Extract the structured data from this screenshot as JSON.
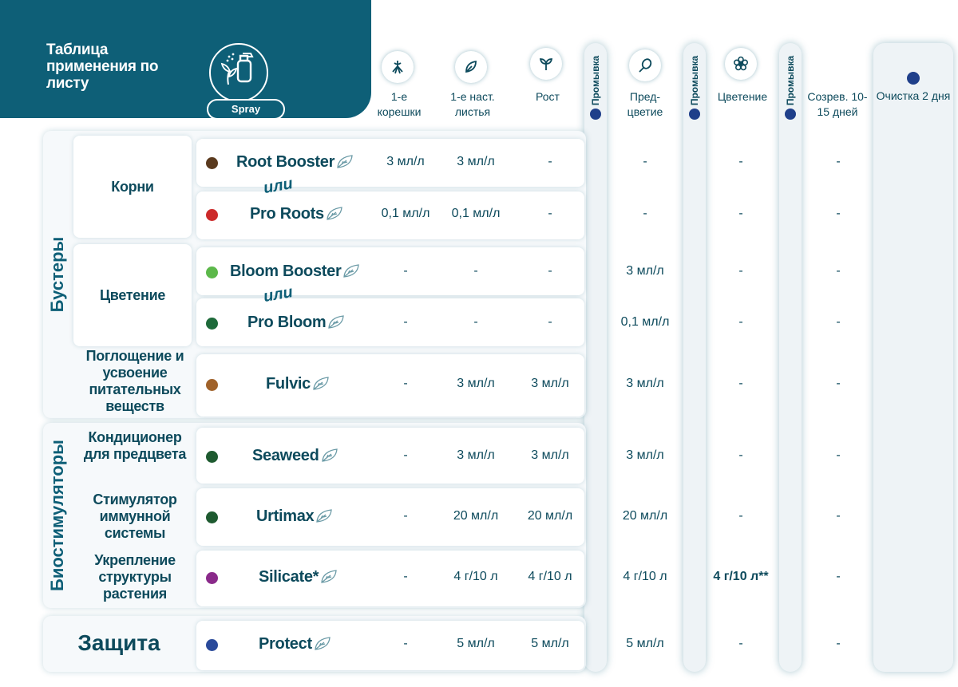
{
  "header": {
    "title": "Таблица применения по листу",
    "badge": "Spray",
    "icon": "spray-bottle-icon",
    "bg_color": "#0e5f77"
  },
  "columns": [
    {
      "label": "1-е корешки",
      "icon": "roots-icon"
    },
    {
      "label": "1-е наст. листья",
      "icon": "leaf-icon"
    },
    {
      "label": "Рост",
      "icon": "sprout-icon"
    },
    {
      "label": "Пред- цветие",
      "icon": "bud-icon"
    },
    {
      "label": "Цветение",
      "icon": "flower-icon"
    },
    {
      "label": "Созрев. 10-15 дней",
      "icon": ""
    }
  ],
  "wash_label": "Промывка",
  "clean": {
    "label": "Очистка 2 дня"
  },
  "groups": {
    "boosters": "Бустеры",
    "biostimulators": "Биостимуляторы",
    "protection": "Защита"
  },
  "subgroups": {
    "roots": "Корни",
    "bloom": "Цветение",
    "absorption": "Поглощение и усвоение питательных веществ",
    "conditioner": "Кондиционер для предцвета",
    "immune": "Стимулятор иммунной системы",
    "structure": "Укрепление структуры растения"
  },
  "or_label": "или",
  "rows": [
    {
      "product": "Root Booster",
      "dot_color": "#5a3a1e",
      "values": [
        "3 мл/л",
        "3 мл/л",
        "-",
        "-",
        "-",
        "-"
      ]
    },
    {
      "product": "Pro Roots",
      "dot_color": "#cc2a2a",
      "values": [
        "0,1 мл/л",
        "0,1 мл/л",
        "-",
        "-",
        "-",
        "-"
      ]
    },
    {
      "product": "Bloom Booster",
      "dot_color": "#5cb84a",
      "values": [
        "-",
        "-",
        "-",
        "3 мл/л",
        "-",
        "-"
      ]
    },
    {
      "product": "Pro Bloom",
      "dot_color": "#1e6a3a",
      "values": [
        "-",
        "-",
        "-",
        "0,1 мл/л",
        "-",
        "-"
      ]
    },
    {
      "product": "Fulvic",
      "dot_color": "#a0622a",
      "values": [
        "-",
        "3 мл/л",
        "3 мл/л",
        "3 мл/л",
        "-",
        "-"
      ]
    },
    {
      "product": "Seaweed",
      "dot_color": "#1e5a30",
      "values": [
        "-",
        "3 мл/л",
        "3 мл/л",
        "3 мл/л",
        "-",
        "-"
      ]
    },
    {
      "product": "Urtimax",
      "dot_color": "#1e5a30",
      "values": [
        "-",
        "20 мл/л",
        "20 мл/л",
        "20 мл/л",
        "-",
        "-"
      ]
    },
    {
      "product": "Silicate*",
      "dot_color": "#8a2a8a",
      "values": [
        "-",
        "4 г/10 л",
        "4 г/10 л",
        "4 г/10 л",
        "4 г/10 л**",
        "-"
      ]
    },
    {
      "product": "Protect",
      "dot_color": "#2a4a9a",
      "values": [
        "-",
        "5 мл/л",
        "5 мл/л",
        "5 мл/л",
        "-",
        "-"
      ]
    }
  ]
}
